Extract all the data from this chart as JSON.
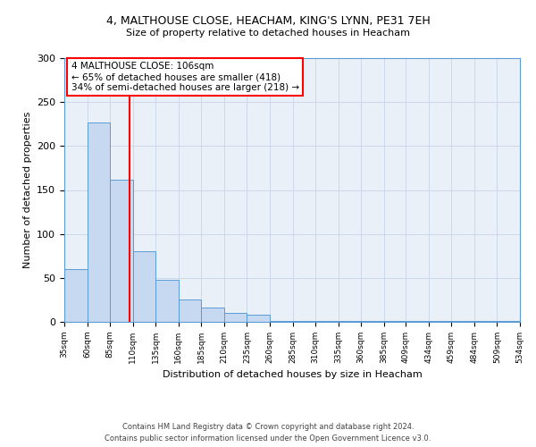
{
  "title1": "4, MALTHOUSE CLOSE, HEACHAM, KING'S LYNN, PE31 7EH",
  "title2": "Size of property relative to detached houses in Heacham",
  "xlabel": "Distribution of detached houses by size in Heacham",
  "ylabel": "Number of detached properties",
  "bin_edges": [
    35,
    60,
    85,
    110,
    135,
    160,
    185,
    210,
    235,
    260,
    285,
    310,
    335,
    360,
    385,
    409,
    434,
    459,
    484,
    509,
    534
  ],
  "bar_heights": [
    60,
    227,
    162,
    80,
    48,
    25,
    16,
    10,
    8,
    1,
    1,
    1,
    1,
    1,
    1,
    1,
    1,
    1,
    1,
    1,
    2
  ],
  "bar_color": "#c6d9f0",
  "bar_edge_color": "#5b9bd5",
  "property_line_x": 106,
  "property_line_color": "#ff0000",
  "ylim": [
    0,
    300
  ],
  "yticks": [
    0,
    50,
    100,
    150,
    200,
    250,
    300
  ],
  "annotation_title": "4 MALTHOUSE CLOSE: 106sqm",
  "annotation_line1": "← 65% of detached houses are smaller (418)",
  "annotation_line2": "34% of semi-detached houses are larger (218) →",
  "annotation_box_color": "#ff0000",
  "footer_line1": "Contains HM Land Registry data © Crown copyright and database right 2024.",
  "footer_line2": "Contains public sector information licensed under the Open Government Licence v3.0.",
  "bg_color": "#ffffff",
  "plot_bg_color": "#eaf0f8",
  "grid_color": "#c8d4e8"
}
